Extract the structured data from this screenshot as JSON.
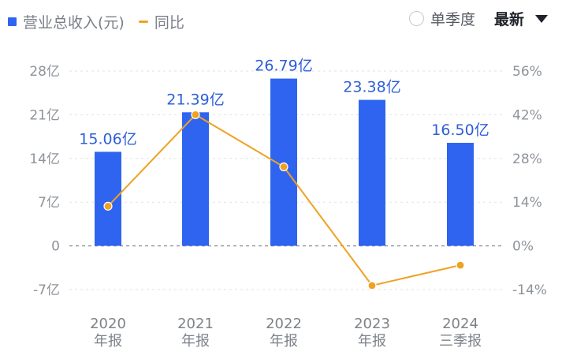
{
  "legend": {
    "bar_label": "营业总收入(元)",
    "line_label": "同比"
  },
  "controls": {
    "quarter_toggle": "单季度",
    "sort_select": "最新"
  },
  "colors": {
    "bar": "#2e64f0",
    "line": "#eea224",
    "label": "#2e5fd8"
  },
  "chart_data": {
    "type": "bar",
    "categories": [
      "2020\n年报",
      "2021\n年报",
      "2022\n年报",
      "2023\n年报",
      "2024\n三季报"
    ],
    "series": [
      {
        "name": "营业总收入(元)",
        "type": "bar",
        "axis": "left",
        "values": [
          15.06,
          21.39,
          26.79,
          23.38,
          16.5
        ],
        "labels": [
          "15.06亿",
          "21.39亿",
          "26.79亿",
          "23.38亿",
          "16.50亿"
        ]
      },
      {
        "name": "同比",
        "type": "line",
        "axis": "right",
        "values": [
          12.7,
          42.0,
          25.3,
          -12.7,
          -6.2
        ]
      }
    ],
    "y_left": {
      "ticks": [
        28,
        21,
        14,
        7,
        0,
        -7
      ],
      "tick_labels": [
        "28亿",
        "21亿",
        "14亿",
        "7亿",
        "0",
        "-7亿"
      ],
      "range": [
        -7,
        28
      ]
    },
    "y_right": {
      "ticks": [
        56,
        42,
        28,
        14,
        0,
        -14
      ],
      "tick_labels": [
        "56%",
        "42%",
        "28%",
        "14%",
        "0%",
        "-14%"
      ],
      "range": [
        -14,
        56
      ]
    },
    "grid": true,
    "legend_position": "top-left"
  }
}
